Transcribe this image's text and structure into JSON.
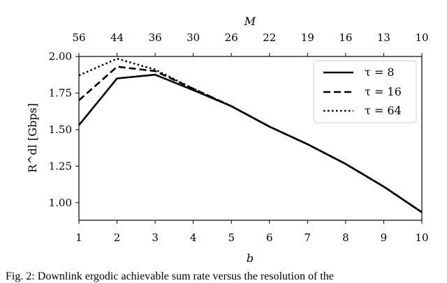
{
  "chart_data": {
    "type": "line",
    "x": [
      1,
      2,
      3,
      4,
      5,
      6,
      7,
      8,
      9,
      10
    ],
    "xlabel": "b",
    "xlim": [
      1,
      10
    ],
    "x_top_label": "M",
    "x_top_ticks": [
      "56",
      "44",
      "36",
      "30",
      "26",
      "22",
      "19",
      "16",
      "13",
      "10"
    ],
    "ylabel": "R^dl [Gbps]",
    "ylim": [
      0.88,
      2.0
    ],
    "y_ticks": [
      1.0,
      1.25,
      1.5,
      1.75,
      2.0
    ],
    "y_tick_labels": [
      "1.00",
      "1.25",
      "1.50",
      "1.75",
      "2.00"
    ],
    "legend_position": "top-right",
    "grid": false,
    "series": [
      {
        "name": "τ = 8",
        "style": "solid",
        "values": [
          1.53,
          1.85,
          1.875,
          1.77,
          1.66,
          1.52,
          1.4,
          1.265,
          1.11,
          0.935
        ]
      },
      {
        "name": "τ = 16",
        "style": "dashed",
        "values": [
          1.7,
          1.93,
          1.9,
          1.78,
          1.66,
          1.52,
          1.4,
          1.265,
          1.11,
          0.935
        ]
      },
      {
        "name": "τ = 64",
        "style": "dotted",
        "values": [
          1.87,
          1.985,
          1.91,
          1.78,
          1.66,
          1.52,
          1.4,
          1.265,
          1.11,
          0.935
        ]
      }
    ]
  },
  "caption": "Fig. 2: Downlink ergodic achievable sum rate versus the resolution of the"
}
